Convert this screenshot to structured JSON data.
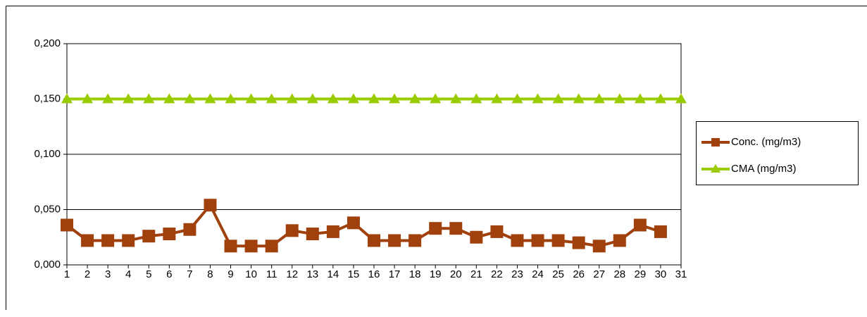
{
  "chart_data": {
    "type": "line",
    "categories": [
      "1",
      "2",
      "3",
      "4",
      "5",
      "6",
      "7",
      "8",
      "9",
      "10",
      "11",
      "12",
      "13",
      "14",
      "15",
      "16",
      "17",
      "18",
      "19",
      "20",
      "21",
      "22",
      "23",
      "24",
      "25",
      "26",
      "27",
      "28",
      "29",
      "30",
      "31"
    ],
    "series": [
      {
        "name": "Conc. (mg/m3)",
        "color": "#a0410d",
        "marker": "square",
        "values": [
          0.036,
          0.022,
          0.022,
          0.022,
          0.026,
          0.028,
          0.032,
          0.054,
          0.017,
          0.017,
          0.017,
          0.031,
          0.028,
          0.03,
          0.038,
          0.022,
          0.022,
          0.022,
          0.033,
          0.033,
          0.025,
          0.03,
          0.022,
          0.022,
          0.022,
          0.02,
          0.017,
          0.022,
          0.036,
          0.03,
          null
        ]
      },
      {
        "name": "CMA (mg/m3)",
        "color": "#99cc00",
        "marker": "triangle",
        "values": [
          0.15,
          0.15,
          0.15,
          0.15,
          0.15,
          0.15,
          0.15,
          0.15,
          0.15,
          0.15,
          0.15,
          0.15,
          0.15,
          0.15,
          0.15,
          0.15,
          0.15,
          0.15,
          0.15,
          0.15,
          0.15,
          0.15,
          0.15,
          0.15,
          0.15,
          0.15,
          0.15,
          0.15,
          0.15,
          0.15,
          0.15
        ]
      }
    ],
    "ylim": [
      0,
      0.2
    ],
    "yticks": [
      {
        "value": 0,
        "label": "0,000"
      },
      {
        "value": 0.05,
        "label": "0,050"
      },
      {
        "value": 0.1,
        "label": "0,100"
      },
      {
        "value": 0.15,
        "label": "0,150"
      },
      {
        "value": 0.2,
        "label": "0,200"
      }
    ],
    "grid": true,
    "legend": "right"
  }
}
